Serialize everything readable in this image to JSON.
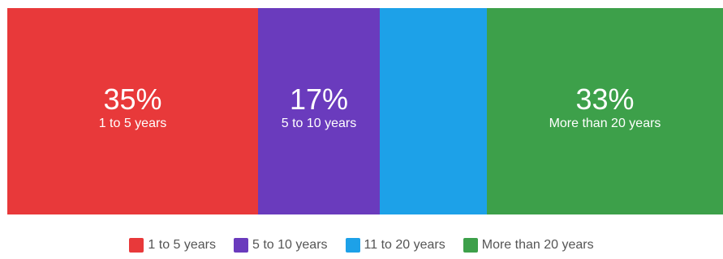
{
  "chart_data": {
    "type": "bar",
    "orientation": "horizontal-stacked-100",
    "title": "",
    "xlabel": "",
    "ylabel": "",
    "categories": [
      "1 to 5 years",
      "5 to 10 years",
      "11 to 20 years",
      "More than 20 years"
    ],
    "values": [
      35,
      17,
      15,
      33
    ],
    "value_labels": [
      "35%",
      "17%",
      "",
      "33%"
    ],
    "segment_labels": [
      "1 to 5 years",
      "5 to 10 years",
      "",
      "More than 20 years"
    ],
    "colors": [
      "#e8393a",
      "#6a3bbd",
      "#1da1e8",
      "#3da04a"
    ],
    "unit": "%",
    "legend": {
      "position": "bottom-center",
      "entries": [
        "1 to 5 years",
        "5 to 10 years",
        "11 to 20 years",
        "More than 20 years"
      ]
    },
    "grid": false
  }
}
